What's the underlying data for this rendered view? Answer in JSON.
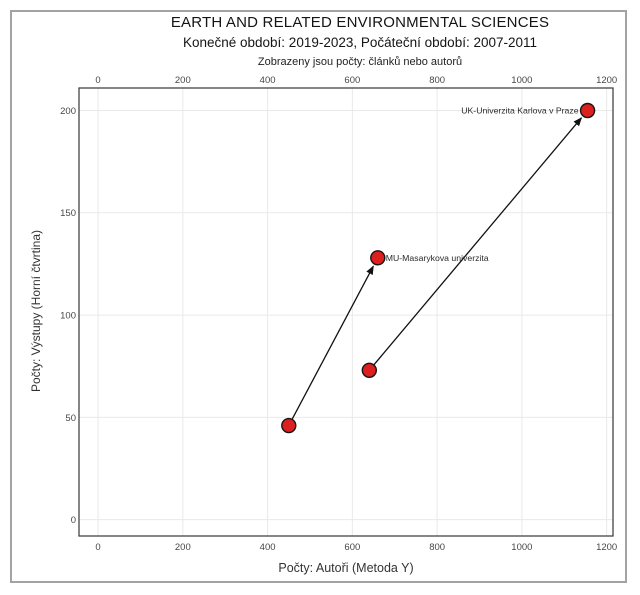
{
  "chart_data": {
    "type": "scatter",
    "title": "EARTH AND RELATED ENVIRONMENTAL SCIENCES",
    "subtitle": "Konečné období: 2019-2023, Počáteční období: 2007-2011",
    "note": "Zobrazeny jsou počty: článků nebo autorů",
    "xlabel": "Počty: Autoři (Metoda Y)",
    "ylabel": "Počty: Výstupy (Horní čtvrtina)",
    "xlim": [
      -45,
      1215
    ],
    "ylim": [
      -8,
      211
    ],
    "x_ticks": [
      0,
      200,
      400,
      600,
      800,
      1000,
      1200
    ],
    "y_ticks": [
      0,
      50,
      100,
      150,
      200
    ],
    "grid": true,
    "legend": "none",
    "series": [
      {
        "name": "UK-Univerzita Karlova v Praze",
        "from": {
          "x": 640,
          "y": 73
        },
        "to": {
          "x": 1155,
          "y": 200
        },
        "label_side": "left"
      },
      {
        "name": "MU-Masarykova univerzita",
        "from": {
          "x": 450,
          "y": 46
        },
        "to": {
          "x": 660,
          "y": 128
        },
        "label_side": "right"
      }
    ],
    "colors": {
      "marker_fill": "#dc1f1f",
      "marker_stroke": "#1c1414",
      "arrow": "#111111",
      "grid": "#e9e9e9",
      "frame": "#444444",
      "tick_text": "#474747",
      "label_text": "#2a2a2a"
    }
  }
}
